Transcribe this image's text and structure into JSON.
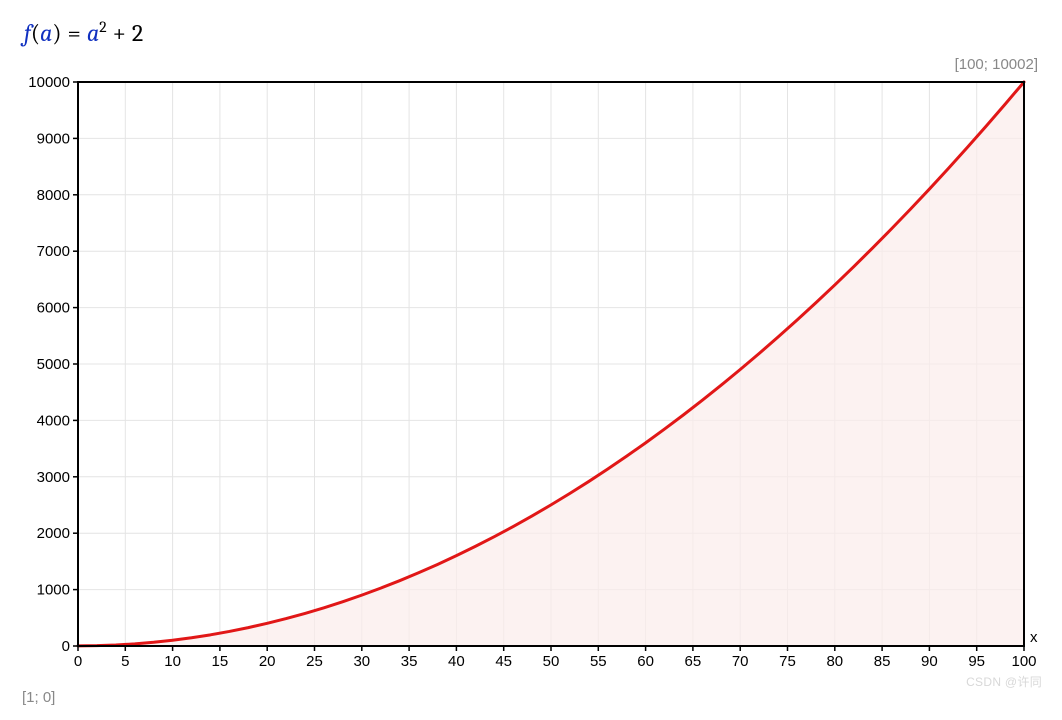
{
  "formula": {
    "fn": "f",
    "var": "a",
    "expr_var": "a",
    "expr_exp": "2",
    "expr_const": "2"
  },
  "coord_top_right": "[100; 10002]",
  "coord_bottom_left": "[1; 0]",
  "watermark": "CSDN @许同",
  "chart": {
    "type": "line-area",
    "x_axis_label": "x",
    "xlim": [
      0,
      100
    ],
    "ylim": [
      0,
      10000
    ],
    "x_ticks": [
      0,
      5,
      10,
      15,
      20,
      25,
      30,
      35,
      40,
      45,
      50,
      55,
      60,
      65,
      70,
      75,
      80,
      85,
      90,
      95,
      100
    ],
    "y_ticks": [
      0,
      1000,
      2000,
      3000,
      4000,
      5000,
      6000,
      7000,
      8000,
      9000,
      10000
    ],
    "grid_color": "#e4e4e4",
    "border_color": "#000000",
    "border_width": 2,
    "background_color": "#ffffff",
    "line_color": "#e11717",
    "line_width": 3,
    "fill_color": "#fbeceb",
    "fill_opacity": 0.7,
    "tick_fontsize": 15,
    "points": [
      {
        "x": 0,
        "y": 2
      },
      {
        "x": 2,
        "y": 6
      },
      {
        "x": 4,
        "y": 18
      },
      {
        "x": 6,
        "y": 38
      },
      {
        "x": 8,
        "y": 66
      },
      {
        "x": 10,
        "y": 102
      },
      {
        "x": 12,
        "y": 146
      },
      {
        "x": 14,
        "y": 198
      },
      {
        "x": 16,
        "y": 258
      },
      {
        "x": 18,
        "y": 326
      },
      {
        "x": 20,
        "y": 402
      },
      {
        "x": 22,
        "y": 486
      },
      {
        "x": 24,
        "y": 578
      },
      {
        "x": 26,
        "y": 678
      },
      {
        "x": 28,
        "y": 786
      },
      {
        "x": 30,
        "y": 902
      },
      {
        "x": 32,
        "y": 1026
      },
      {
        "x": 34,
        "y": 1158
      },
      {
        "x": 36,
        "y": 1298
      },
      {
        "x": 38,
        "y": 1446
      },
      {
        "x": 40,
        "y": 1602
      },
      {
        "x": 42,
        "y": 1766
      },
      {
        "x": 44,
        "y": 1938
      },
      {
        "x": 46,
        "y": 2118
      },
      {
        "x": 48,
        "y": 2306
      },
      {
        "x": 50,
        "y": 2502
      },
      {
        "x": 52,
        "y": 2706
      },
      {
        "x": 54,
        "y": 2918
      },
      {
        "x": 56,
        "y": 3138
      },
      {
        "x": 58,
        "y": 3366
      },
      {
        "x": 60,
        "y": 3602
      },
      {
        "x": 62,
        "y": 3846
      },
      {
        "x": 64,
        "y": 4098
      },
      {
        "x": 66,
        "y": 4358
      },
      {
        "x": 68,
        "y": 4626
      },
      {
        "x": 70,
        "y": 4902
      },
      {
        "x": 72,
        "y": 5186
      },
      {
        "x": 74,
        "y": 5478
      },
      {
        "x": 76,
        "y": 5778
      },
      {
        "x": 78,
        "y": 6086
      },
      {
        "x": 80,
        "y": 6402
      },
      {
        "x": 82,
        "y": 6726
      },
      {
        "x": 84,
        "y": 7058
      },
      {
        "x": 86,
        "y": 7398
      },
      {
        "x": 88,
        "y": 7746
      },
      {
        "x": 90,
        "y": 8102
      },
      {
        "x": 92,
        "y": 8466
      },
      {
        "x": 94,
        "y": 8838
      },
      {
        "x": 96,
        "y": 9218
      },
      {
        "x": 98,
        "y": 9606
      },
      {
        "x": 100,
        "y": 10002
      }
    ]
  }
}
